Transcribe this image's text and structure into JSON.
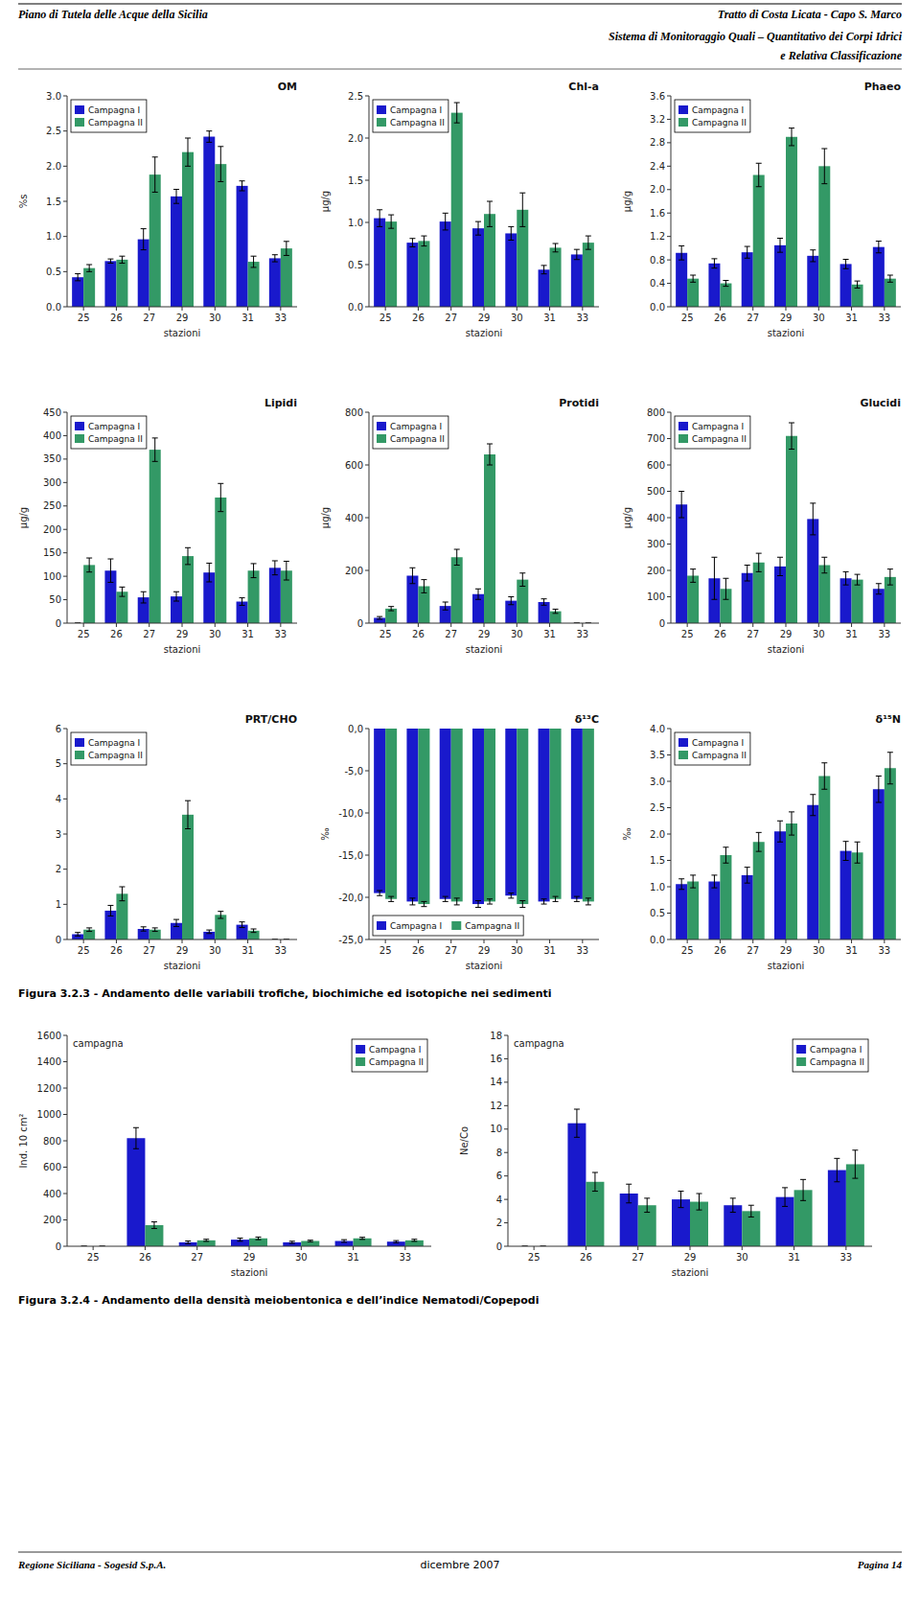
{
  "header": [
    "Piano di Tutela delle Acque  della Sicilia",
    "Tratto di Costa Licata - Capo S. Marco",
    "Sistema di Monitoraggio Quali – Quantitativo dei Corpi Idrici",
    "e Relativa Classificazione"
  ],
  "captions": [
    "Figura 3.2.3 - Andamento delle variabili trofiche, biochimiche ed isotopiche nei sedimenti",
    "Figura 3.2.4 - Andamento della densità meiobentonica e dell’indice Nematodi/Copepodi"
  ],
  "footer": [
    "Regione Siciliana - Sogesid S.p.A.",
    "dicembre  2007",
    "Pagina 14"
  ],
  "chart_data": [
    {
      "type": "bar",
      "title": "OM",
      "xlabel": "stazioni",
      "ylabel": "%s",
      "categories": [
        25,
        26,
        27,
        29,
        30,
        31,
        33
      ],
      "series": [
        {
          "name": "Campagna I",
          "color": "#1919cc",
          "values": [
            0.42,
            0.65,
            0.96,
            1.57,
            2.42,
            1.72,
            0.69
          ],
          "errors": [
            0.05,
            0.03,
            0.15,
            0.1,
            0.08,
            0.07,
            0.05
          ]
        },
        {
          "name": "Campagna II",
          "color": "#339966",
          "values": [
            0.55,
            0.67,
            1.88,
            2.2,
            2.03,
            0.64,
            0.83
          ],
          "errors": [
            0.05,
            0.05,
            0.25,
            0.2,
            0.25,
            0.08,
            0.1
          ]
        }
      ],
      "ylim": [
        0,
        3.0
      ],
      "yticks": [
        {
          "value": 0,
          "label": "0.0"
        },
        0.5,
        {
          "value": 1,
          "label": "1.0"
        },
        1.5,
        {
          "value": 2,
          "label": "2.0"
        },
        2.5,
        {
          "value": 3,
          "label": "3.0"
        }
      ],
      "grid": false,
      "legend": "upper left"
    },
    {
      "type": "bar",
      "title": "Chl-a",
      "xlabel": "stazioni",
      "ylabel": "μg/g",
      "categories": [
        25,
        26,
        27,
        29,
        30,
        31,
        33
      ],
      "series": [
        {
          "name": "Campagna I",
          "color": "#1919cc",
          "values": [
            1.05,
            0.76,
            1.01,
            0.93,
            0.87,
            0.44,
            0.62
          ],
          "errors": [
            0.1,
            0.05,
            0.1,
            0.08,
            0.08,
            0.05,
            0.06
          ]
        },
        {
          "name": "Campagna II",
          "color": "#339966",
          "values": [
            1.01,
            0.78,
            2.3,
            1.1,
            1.15,
            0.7,
            0.76
          ],
          "errors": [
            0.08,
            0.06,
            0.12,
            0.15,
            0.2,
            0.05,
            0.08
          ]
        }
      ],
      "ylim": [
        0,
        2.5
      ],
      "yticks": [
        {
          "value": 0,
          "label": "0.0"
        },
        0.5,
        {
          "value": 1,
          "label": "1.0"
        },
        1.5,
        {
          "value": 2,
          "label": "2.0"
        },
        2.5
      ],
      "grid": false,
      "legend": "upper left"
    },
    {
      "type": "bar",
      "title": "Phaeo",
      "xlabel": "stazioni",
      "ylabel": "μg/g",
      "categories": [
        25,
        26,
        27,
        29,
        30,
        31,
        33
      ],
      "series": [
        {
          "name": "Campagna I",
          "color": "#1919cc",
          "values": [
            0.92,
            0.74,
            0.93,
            1.05,
            0.87,
            0.73,
            1.02
          ],
          "errors": [
            0.12,
            0.08,
            0.1,
            0.12,
            0.1,
            0.08,
            0.1
          ]
        },
        {
          "name": "Campagna II",
          "color": "#339966",
          "values": [
            0.48,
            0.4,
            2.25,
            2.9,
            2.4,
            0.38,
            0.48
          ],
          "errors": [
            0.06,
            0.05,
            0.2,
            0.15,
            0.3,
            0.06,
            0.06
          ]
        }
      ],
      "ylim": [
        0,
        3.6
      ],
      "yticks": [
        {
          "value": 0,
          "label": "0.0"
        },
        0.4,
        0.8,
        1.2,
        1.6,
        {
          "value": 2,
          "label": "2.0"
        },
        2.4,
        2.8,
        3.2,
        3.6
      ],
      "grid": false,
      "legend": "upper left"
    },
    {
      "type": "bar",
      "title": "Lipidi",
      "xlabel": "stazioni",
      "ylabel": "μg/g",
      "categories": [
        25,
        26,
        27,
        29,
        30,
        31,
        33
      ],
      "series": [
        {
          "name": "Campagna I",
          "color": "#1919cc",
          "values": [
            0,
            112,
            55,
            57,
            108,
            46,
            118
          ],
          "errors": [
            0,
            25,
            12,
            10,
            20,
            8,
            15
          ]
        },
        {
          "name": "Campagna II",
          "color": "#339966",
          "values": [
            124,
            67,
            370,
            143,
            268,
            112,
            112
          ],
          "errors": [
            15,
            10,
            25,
            18,
            30,
            15,
            20
          ]
        }
      ],
      "ylim": [
        0,
        450
      ],
      "yticks": [
        0,
        50,
        100,
        150,
        200,
        250,
        300,
        350,
        400,
        450
      ],
      "grid": false,
      "legend": "upper left"
    },
    {
      "type": "bar",
      "title": "Protidi",
      "xlabel": "stazioni",
      "ylabel": "μg/g",
      "categories": [
        25,
        26,
        27,
        29,
        30,
        31,
        33
      ],
      "series": [
        {
          "name": "Campagna I",
          "color": "#1919cc",
          "values": [
            20,
            180,
            65,
            110,
            85,
            80,
            0
          ],
          "errors": [
            5,
            30,
            15,
            20,
            15,
            12,
            0
          ]
        },
        {
          "name": "Campagna II",
          "color": "#339966",
          "values": [
            55,
            140,
            250,
            640,
            165,
            45,
            0
          ],
          "errors": [
            8,
            25,
            30,
            40,
            25,
            8,
            0
          ]
        }
      ],
      "ylim": [
        0,
        800
      ],
      "yticks": [
        0,
        200,
        400,
        600,
        800
      ],
      "grid": false,
      "legend": "upper left"
    },
    {
      "type": "bar",
      "title": "Glucidi",
      "xlabel": "stazioni",
      "ylabel": "μg/g",
      "categories": [
        25,
        26,
        27,
        29,
        30,
        31,
        33
      ],
      "series": [
        {
          "name": "Campagna I",
          "color": "#1919cc",
          "values": [
            450,
            170,
            190,
            215,
            395,
            170,
            130
          ],
          "errors": [
            50,
            80,
            30,
            35,
            60,
            25,
            20
          ]
        },
        {
          "name": "Campagna II",
          "color": "#339966",
          "values": [
            180,
            130,
            230,
            710,
            220,
            165,
            175
          ],
          "errors": [
            25,
            40,
            35,
            50,
            30,
            20,
            30
          ]
        }
      ],
      "ylim": [
        0,
        800
      ],
      "yticks": [
        0,
        100,
        200,
        300,
        400,
        500,
        600,
        700,
        800
      ],
      "grid": false,
      "legend": "upper left"
    },
    {
      "type": "bar",
      "title": "PRT/CHO",
      "xlabel": "stazioni",
      "categories": [
        25,
        26,
        27,
        29,
        30,
        31,
        33
      ],
      "series": [
        {
          "name": "Campagna I",
          "color": "#1919cc",
          "values": [
            0.15,
            0.82,
            0.3,
            0.47,
            0.22,
            0.42,
            0.0
          ],
          "errors": [
            0.05,
            0.15,
            0.06,
            0.1,
            0.05,
            0.08,
            0.0
          ]
        },
        {
          "name": "Campagna II",
          "color": "#339966",
          "values": [
            0.28,
            1.3,
            0.28,
            3.55,
            0.7,
            0.25,
            0.0
          ],
          "errors": [
            0.05,
            0.2,
            0.05,
            0.4,
            0.1,
            0.05,
            0.0
          ]
        }
      ],
      "ylim": [
        0,
        6
      ],
      "yticks": [
        0,
        1,
        2,
        3,
        4,
        5,
        6
      ],
      "grid": false,
      "legend": "upper left"
    },
    {
      "type": "bar",
      "title": "δ¹³C",
      "xlabel": "stazioni",
      "ylabel": "‰",
      "categories": [
        25,
        26,
        27,
        29,
        30,
        31,
        33
      ],
      "series": [
        {
          "name": "Campagna I",
          "color": "#1919cc",
          "values": [
            -19.5,
            -20.5,
            -20.2,
            -20.8,
            -19.8,
            -20.5,
            -20.2
          ],
          "errors": [
            0.3,
            0.4,
            0.3,
            0.4,
            0.3,
            0.3,
            0.3
          ]
        },
        {
          "name": "Campagna II",
          "color": "#339966",
          "values": [
            -20.2,
            -20.8,
            -20.5,
            -20.5,
            -20.8,
            -20.2,
            -20.5
          ],
          "errors": [
            0.3,
            0.3,
            0.4,
            0.3,
            0.4,
            0.3,
            0.4
          ]
        }
      ],
      "ylim": [
        -25,
        0
      ],
      "yticks": [
        {
          "value": -25,
          "label": "-25,0"
        },
        {
          "value": -20,
          "label": "-20,0"
        },
        {
          "value": -15,
          "label": "-15,0"
        },
        {
          "value": -10,
          "label": "-10,0"
        },
        {
          "value": -5,
          "label": "-5,0"
        },
        {
          "value": 0,
          "label": "0,0"
        }
      ],
      "grid": false,
      "legend": "lower left"
    },
    {
      "type": "bar",
      "title": "δ¹⁵N",
      "xlabel": "stazioni",
      "ylabel": "‰",
      "categories": [
        25,
        26,
        27,
        29,
        30,
        31,
        33
      ],
      "series": [
        {
          "name": "Campagna I",
          "color": "#1919cc",
          "values": [
            1.05,
            1.1,
            1.22,
            2.05,
            2.55,
            1.68,
            2.85
          ],
          "errors": [
            0.1,
            0.12,
            0.15,
            0.2,
            0.2,
            0.18,
            0.25
          ]
        },
        {
          "name": "Campagna II",
          "color": "#339966",
          "values": [
            1.1,
            1.6,
            1.85,
            2.2,
            3.1,
            1.65,
            3.25
          ],
          "errors": [
            0.12,
            0.15,
            0.18,
            0.22,
            0.25,
            0.2,
            0.3
          ]
        }
      ],
      "ylim": [
        0,
        4
      ],
      "yticks": [
        {
          "value": 0,
          "label": "0.0"
        },
        0.5,
        {
          "value": 1,
          "label": "1.0"
        },
        1.5,
        {
          "value": 2,
          "label": "2.0"
        },
        2.5,
        {
          "value": 3,
          "label": "3.0"
        },
        3.5,
        {
          "value": 4,
          "label": "4.0"
        }
      ],
      "grid": false,
      "legend": "upper left"
    },
    {
      "type": "bar",
      "xlabel": "stazioni",
      "ylabel": "Ind. 10 cm²",
      "annotations": [
        "campagna"
      ],
      "categories": [
        25,
        26,
        27,
        29,
        30,
        31,
        33
      ],
      "series": [
        {
          "name": "Campagna I",
          "color": "#1919cc",
          "values": [
            0,
            820,
            30,
            50,
            30,
            40,
            35
          ],
          "errors": [
            0,
            80,
            10,
            12,
            8,
            10,
            8
          ]
        },
        {
          "name": "Campagna II",
          "color": "#339966",
          "values": [
            0,
            160,
            45,
            60,
            40,
            60,
            45
          ],
          "errors": [
            0,
            25,
            8,
            10,
            6,
            8,
            8
          ]
        }
      ],
      "ylim": [
        0,
        1600
      ],
      "yticks": [
        0,
        200,
        400,
        600,
        800,
        1000,
        1200,
        1400,
        1600
      ],
      "grid": false,
      "legend": "upper right"
    },
    {
      "type": "bar",
      "xlabel": "stazioni",
      "ylabel": "Ne/Co",
      "annotations": [
        "campagna"
      ],
      "categories": [
        25,
        26,
        27,
        29,
        30,
        31,
        33
      ],
      "series": [
        {
          "name": "Campagna I",
          "color": "#1919cc",
          "values": [
            0,
            10.5,
            4.5,
            4.0,
            3.5,
            4.2,
            6.5
          ],
          "errors": [
            0,
            1.2,
            0.8,
            0.7,
            0.6,
            0.8,
            1.0
          ]
        },
        {
          "name": "Campagna II",
          "color": "#339966",
          "values": [
            0,
            5.5,
            3.5,
            3.8,
            3.0,
            4.8,
            7.0
          ],
          "errors": [
            0,
            0.8,
            0.6,
            0.7,
            0.5,
            0.9,
            1.2
          ]
        }
      ],
      "ylim": [
        0,
        18
      ],
      "yticks": [
        0,
        2,
        4,
        6,
        8,
        10,
        12,
        14,
        16,
        18
      ],
      "grid": false,
      "legend": "upper right"
    }
  ]
}
